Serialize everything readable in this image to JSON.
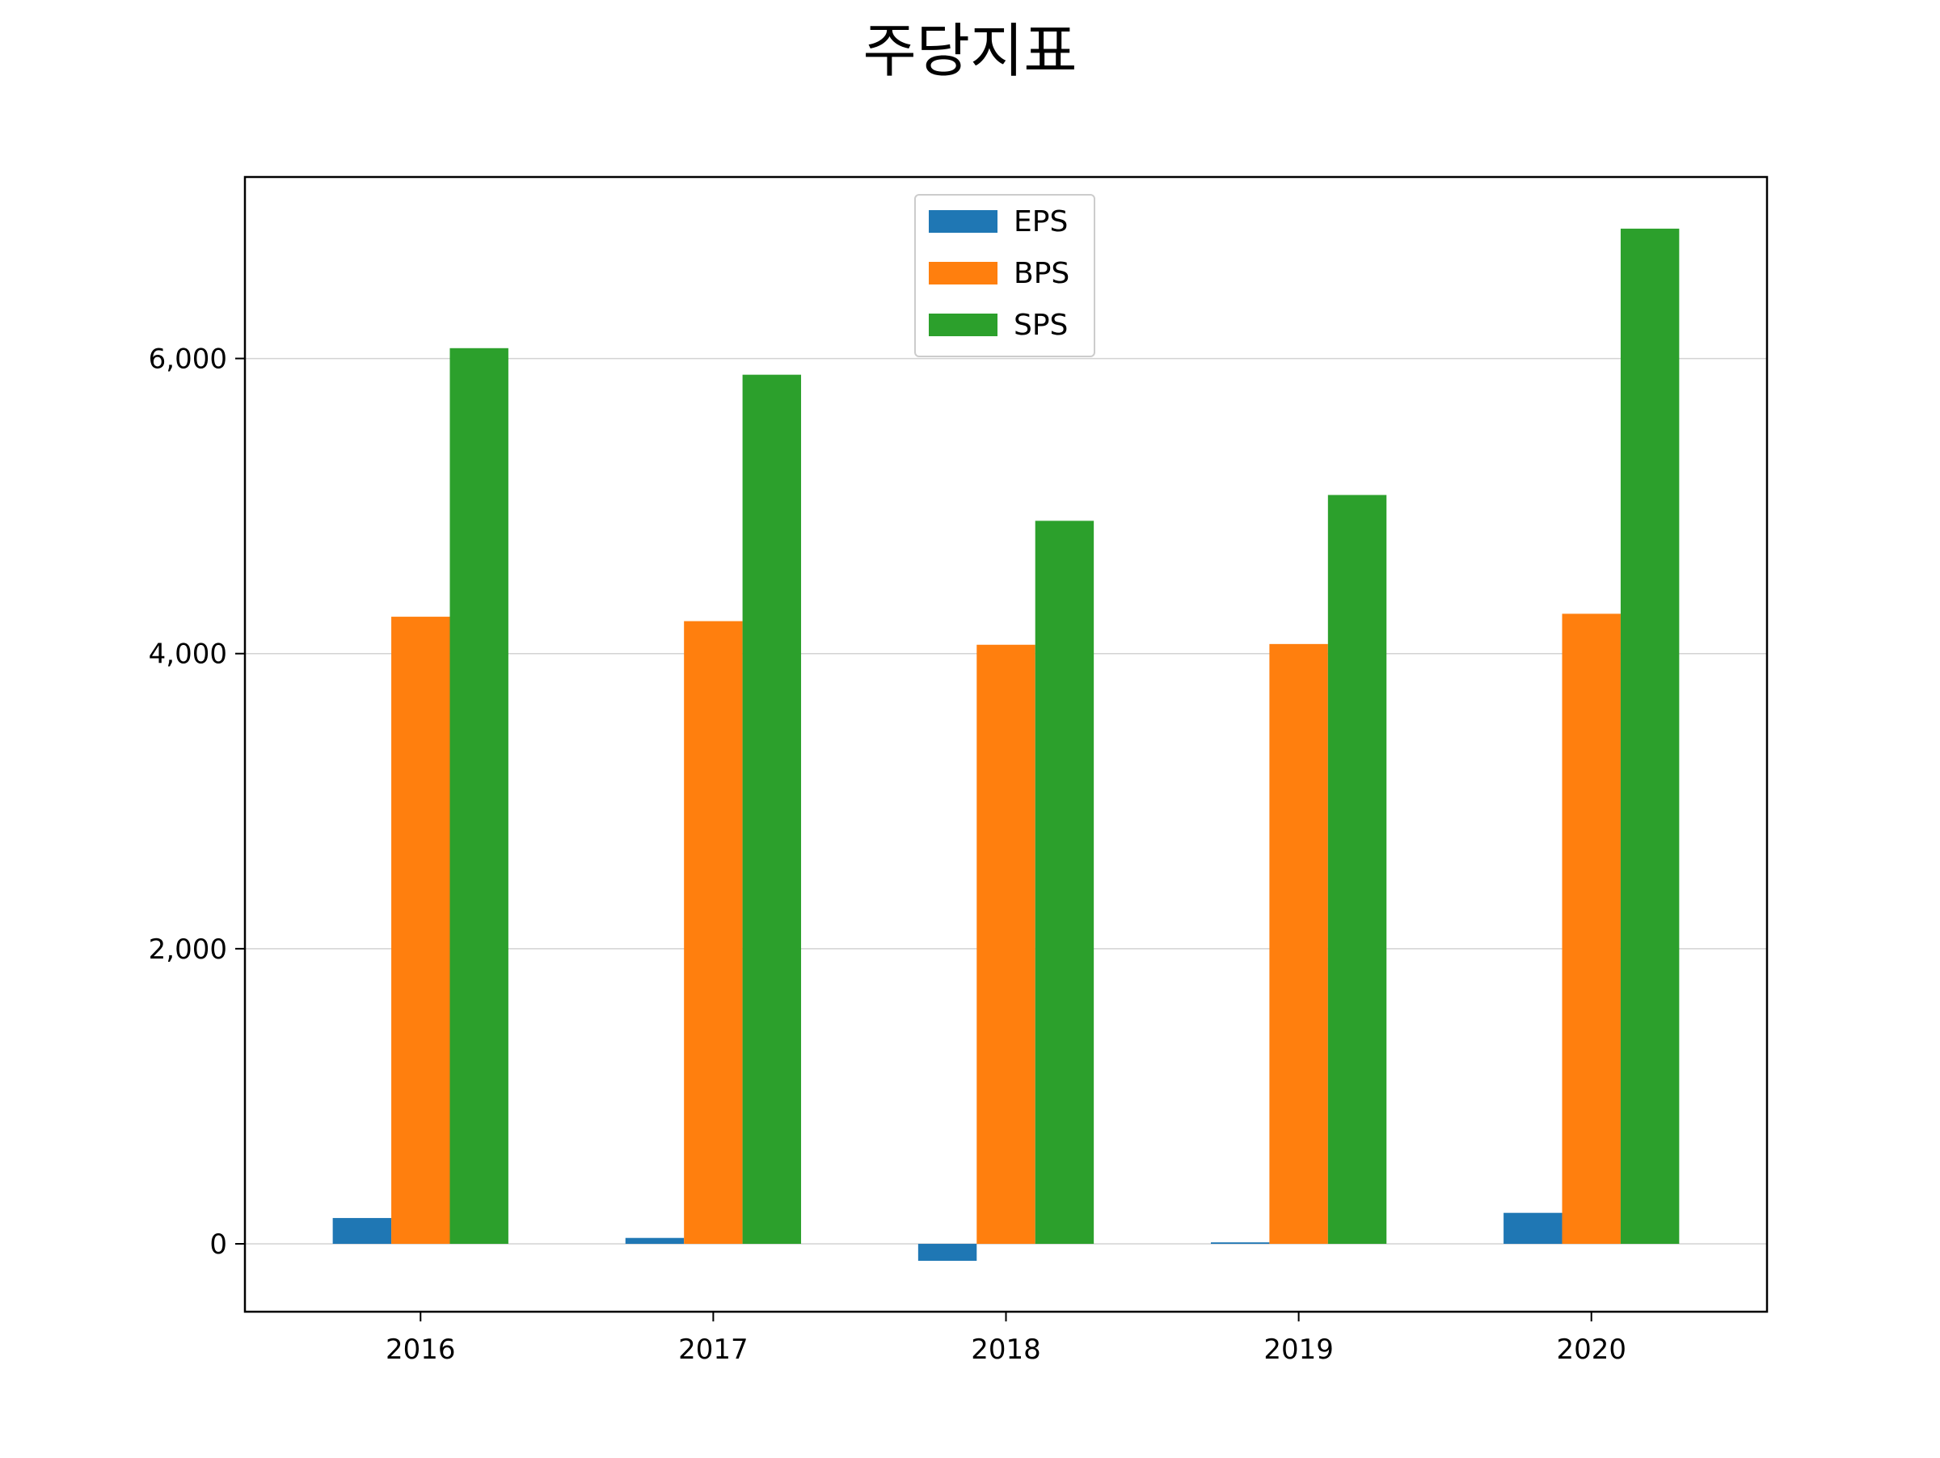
{
  "chart_data": {
    "type": "bar",
    "title": "주당지표",
    "xlabel": "",
    "ylabel": "",
    "categories": [
      "2016",
      "2017",
      "2018",
      "2019",
      "2020"
    ],
    "series": [
      {
        "name": "EPS",
        "color": "#1f77b4",
        "values": [
          175,
          40,
          -115,
          10,
          210
        ]
      },
      {
        "name": "BPS",
        "color": "#ff7f0e",
        "values": [
          4250,
          4220,
          4060,
          4065,
          4270
        ]
      },
      {
        "name": "SPS",
        "color": "#2ca02c",
        "values": [
          6070,
          5890,
          4900,
          5075,
          6880
        ]
      }
    ],
    "ylim": [
      -460,
      7230
    ],
    "yticks": [
      0,
      2000,
      4000,
      6000
    ],
    "ytick_labels": [
      "0",
      "2,000",
      "4,000",
      "6,000"
    ],
    "grid": "horizontal",
    "legend_position": "upper-center"
  }
}
